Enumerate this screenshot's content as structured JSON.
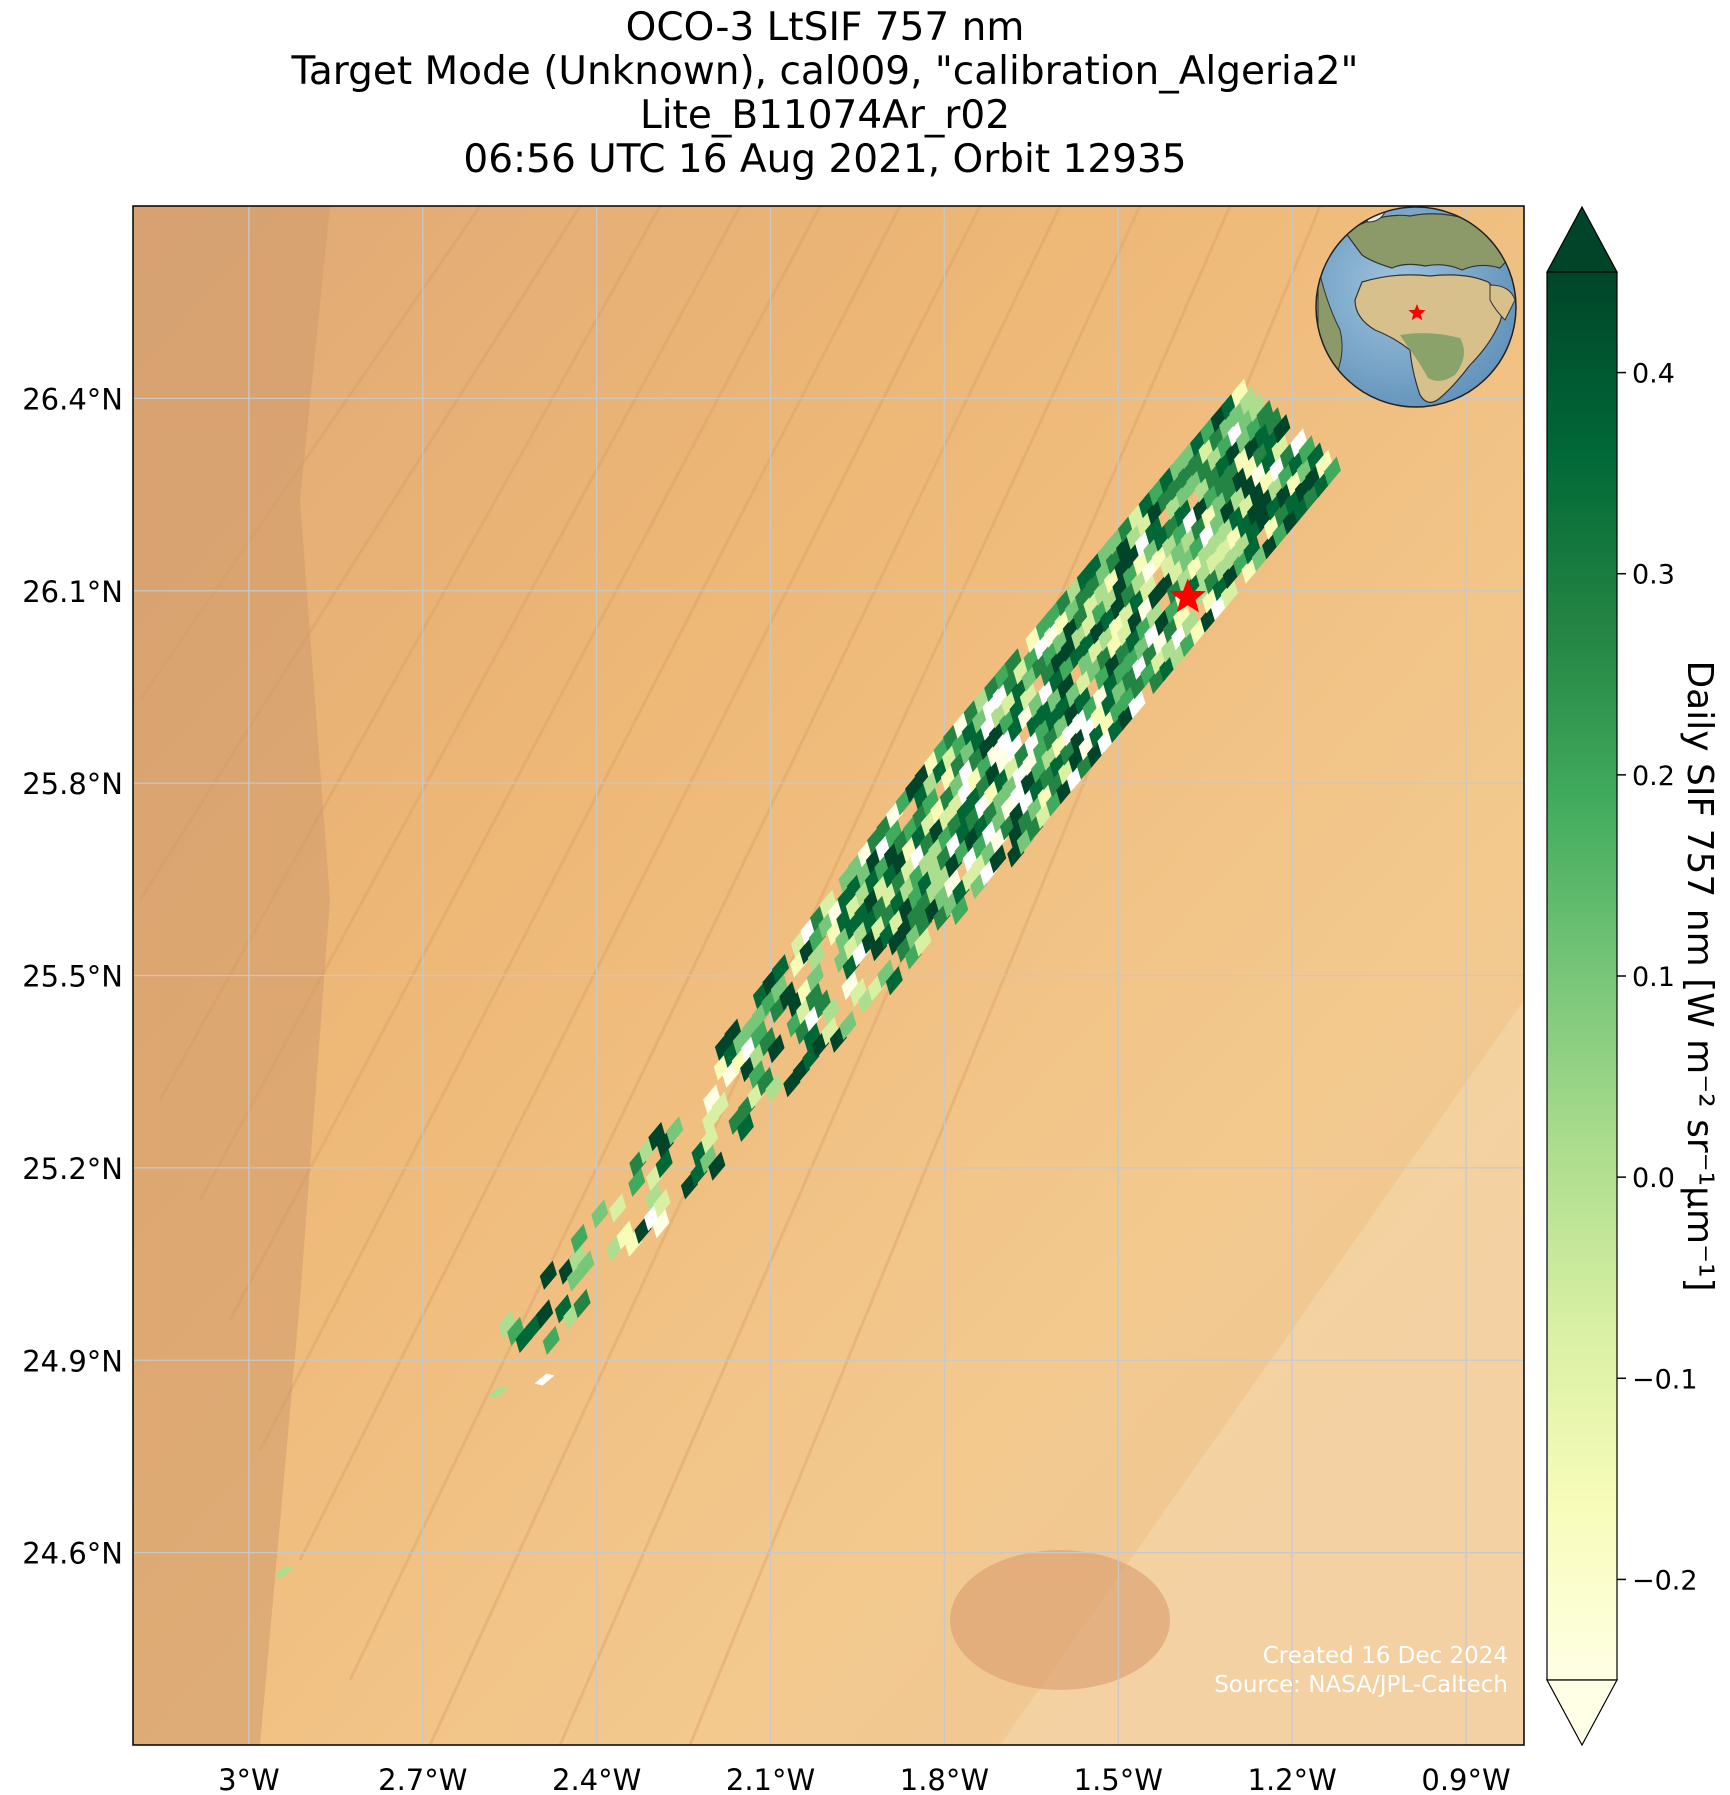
{
  "title": {
    "line1": "OCO-3 LtSIF 757 nm",
    "line2": "Target Mode (Unknown), cal009, \"calibration_Algeria2\"",
    "line3": "Lite_B11074Ar_r02",
    "line4": "06:56 UTC 16 Aug 2021, Orbit 12935"
  },
  "map": {
    "lon_range": [
      -3.2,
      -0.8
    ],
    "lat_range": [
      24.3,
      26.7
    ],
    "lon_ticks": [
      {
        "value": -3.0,
        "label": "3°W"
      },
      {
        "value": -2.7,
        "label": "2.7°W"
      },
      {
        "value": -2.4,
        "label": "2.4°W"
      },
      {
        "value": -2.1,
        "label": "2.1°W"
      },
      {
        "value": -1.8,
        "label": "1.8°W"
      },
      {
        "value": -1.5,
        "label": "1.5°W"
      },
      {
        "value": -1.2,
        "label": "1.2°W"
      },
      {
        "value": -0.9,
        "label": "0.9°W"
      }
    ],
    "lat_ticks": [
      {
        "value": 26.4,
        "label": "26.4°N"
      },
      {
        "value": 26.1,
        "label": "26.1°N"
      },
      {
        "value": 25.8,
        "label": "25.8°N"
      },
      {
        "value": 25.5,
        "label": "25.5°N"
      },
      {
        "value": 25.2,
        "label": "25.2°N"
      },
      {
        "value": 24.9,
        "label": "24.9°N"
      },
      {
        "value": 24.6,
        "label": "24.6°N"
      }
    ],
    "grid": true,
    "target_marker": {
      "lon": -1.38,
      "lat": 26.09,
      "color": "#ff0000",
      "icon": "star-icon"
    },
    "swath_start": {
      "lon": -2.52,
      "lat": 24.93
    },
    "swath_end": {
      "lon": -1.2,
      "lat": 26.35
    },
    "inset_globe": {
      "position": "top-right",
      "icon": "globe-icon"
    }
  },
  "colorbar": {
    "label": "Daily SIF 757 nm [W m⁻² sr⁻¹μm⁻¹]",
    "min": -0.25,
    "max": 0.45,
    "ticks": [
      {
        "value": 0.4,
        "label": "0.4"
      },
      {
        "value": 0.3,
        "label": "0.3"
      },
      {
        "value": 0.2,
        "label": "0.2"
      },
      {
        "value": 0.1,
        "label": "0.1"
      },
      {
        "value": 0.0,
        "label": "0.0"
      },
      {
        "value": -0.1,
        "label": "−0.1"
      },
      {
        "value": -0.2,
        "label": "−0.2"
      }
    ],
    "colors": [
      "#ffffe5",
      "#f7fcb9",
      "#d9f0a3",
      "#addd8e",
      "#78c679",
      "#41ab5d",
      "#238443",
      "#006837",
      "#004529"
    ],
    "extend": "both"
  },
  "credit": {
    "created": "Created 16 Dec 2024",
    "source": "Source: NASA/JPL-Caltech"
  }
}
